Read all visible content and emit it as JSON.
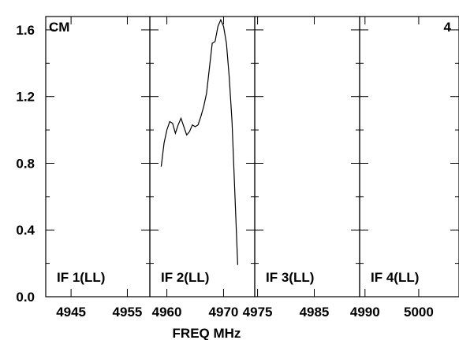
{
  "chart_data": {
    "type": "line",
    "xlabel": "FREQ MHz",
    "corner_left": "CM",
    "corner_right": "4",
    "ylim": [
      0,
      1.68
    ],
    "y_ticks": [
      0.0,
      0.4,
      0.8,
      1.2,
      1.6
    ],
    "y_tick_labels": [
      "0.0",
      "0.4",
      "0.8",
      "1.2",
      "1.6"
    ],
    "panels": [
      {
        "label": "IF 1(LL)",
        "xlim": [
          4940.5,
          4959
        ],
        "x_ticks": [
          4945,
          4955
        ],
        "x_tick_labels": [
          "4945",
          "4955"
        ],
        "series": []
      },
      {
        "label": "IF 2(LL)",
        "xlim": [
          4957,
          4975.5
        ],
        "x_ticks": [
          4960,
          4970
        ],
        "x_tick_labels": [
          "4960",
          "4970"
        ],
        "series": [
          {
            "x": [
              4959.0,
              4959.5,
              4960.0,
              4960.5,
              4961.0,
              4961.5,
              4962.0,
              4962.5,
              4963.0,
              4963.5,
              4964.0,
              4964.5,
              4965.0,
              4965.5,
              4966.0,
              4966.5,
              4967.0,
              4967.5,
              4968.0,
              4968.5,
              4969.0,
              4969.5,
              4970.0,
              4970.5,
              4971.0,
              4971.5,
              4972.0,
              4972.5
            ],
            "y": [
              0.78,
              0.92,
              1.0,
              1.05,
              1.04,
              0.98,
              1.03,
              1.07,
              1.02,
              0.97,
              0.99,
              1.03,
              1.02,
              1.03,
              1.08,
              1.14,
              1.22,
              1.37,
              1.52,
              1.53,
              1.62,
              1.66,
              1.62,
              1.52,
              1.32,
              1.05,
              0.62,
              0.19
            ]
          }
        ]
      },
      {
        "label": "IF 3(LL)",
        "xlim": [
          4974.5,
          4993
        ],
        "x_ticks": [
          4975,
          4985
        ],
        "x_tick_labels": [
          "4975",
          "4985"
        ],
        "series": []
      },
      {
        "label": "IF 4(LL)",
        "xlim": [
          4989,
          5007.5
        ],
        "x_ticks": [
          4990,
          5000
        ],
        "x_tick_labels": [
          "4990",
          "5000"
        ],
        "series": []
      }
    ]
  }
}
